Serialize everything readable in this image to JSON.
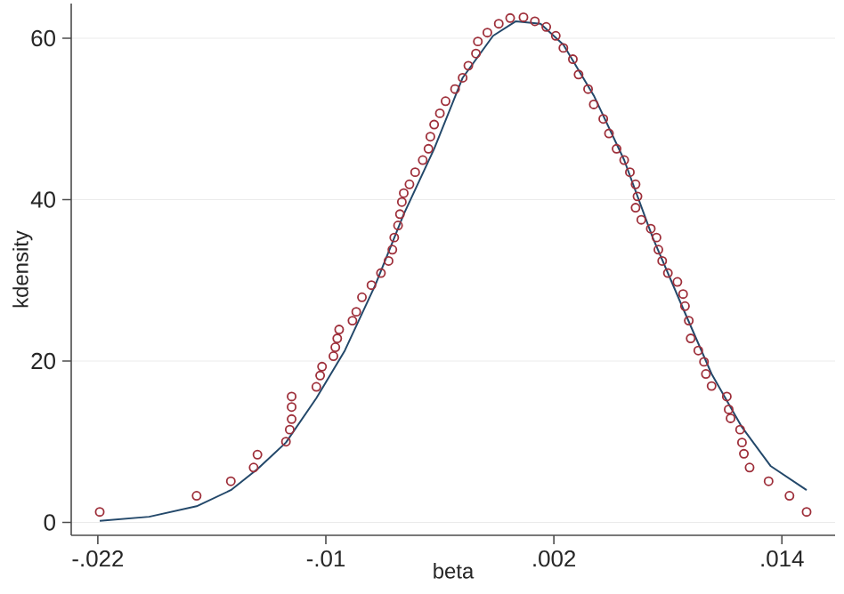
{
  "chart_data": {
    "type": "scatter",
    "xlabel": "beta",
    "ylabel": "kdensity",
    "xlim": [
      -0.0234,
      0.0168
    ],
    "ylim": [
      -1.6,
      64.3
    ],
    "xticks": [
      {
        "value": -0.022,
        "label": "-.022"
      },
      {
        "value": -0.01,
        "label": "-.01"
      },
      {
        "value": 0.002,
        "label": ".002"
      },
      {
        "value": 0.014,
        "label": ".014"
      }
    ],
    "yticks": [
      0,
      20,
      40,
      60
    ],
    "grid": "y",
    "series": [
      {
        "marker": "circle",
        "color": "#9e2f3a",
        "x": [
          -0.0219,
          -0.0168,
          -0.015,
          -0.0138,
          -0.0136,
          -0.0121,
          -0.0119,
          -0.0118,
          -0.0118,
          -0.0118,
          -0.0105,
          -0.0103,
          -0.0102,
          -0.0096,
          -0.0095,
          -0.0094,
          -0.0093,
          -0.0086,
          -0.0084,
          -0.0081,
          -0.0076,
          -0.0071,
          -0.0067,
          -0.0065,
          -0.0064,
          -0.0062,
          -0.0061,
          -0.006,
          -0.0059,
          -0.0056,
          -0.0053,
          -0.0049,
          -0.0046,
          -0.0045,
          -0.0043,
          -0.004,
          -0.0037,
          -0.0032,
          -0.0028,
          -0.0025,
          -0.0021,
          -0.002,
          -0.0015,
          -0.0009,
          -0.0003,
          0.0004,
          0.001,
          0.0016,
          0.0021,
          0.0025,
          0.003,
          0.0033,
          0.0038,
          0.0041,
          0.0046,
          0.0049,
          0.0053,
          0.0057,
          0.006,
          0.0063,
          0.0064,
          0.0063,
          0.0066,
          0.0071,
          0.0074,
          0.0075,
          0.0077,
          0.008,
          0.0085,
          0.0088,
          0.0089,
          0.0091,
          0.0092,
          0.0096,
          0.0099,
          0.01,
          0.0103,
          0.0111,
          0.0112,
          0.0113,
          0.0118,
          0.0119,
          0.012,
          0.0123,
          0.0133,
          0.0144,
          0.0153
        ],
        "values": [
          1.3,
          3.3,
          5.1,
          6.8,
          8.4,
          10.0,
          11.5,
          12.8,
          14.3,
          15.6,
          16.8,
          18.2,
          19.3,
          20.6,
          21.7,
          22.8,
          23.9,
          25.0,
          26.1,
          27.9,
          29.4,
          30.9,
          32.4,
          33.8,
          35.3,
          36.8,
          38.2,
          39.7,
          40.8,
          41.9,
          43.4,
          44.9,
          46.3,
          47.8,
          49.3,
          50.7,
          52.2,
          53.7,
          55.1,
          56.6,
          58.1,
          59.6,
          60.7,
          61.8,
          62.5,
          62.6,
          62.1,
          61.4,
          60.3,
          58.8,
          57.4,
          55.5,
          53.7,
          51.8,
          50.0,
          48.2,
          46.3,
          44.9,
          43.4,
          41.9,
          40.4,
          39.0,
          37.5,
          36.4,
          35.3,
          33.8,
          32.4,
          30.9,
          29.8,
          28.3,
          26.8,
          25.0,
          22.8,
          21.3,
          19.9,
          18.4,
          16.9,
          15.6,
          14.0,
          12.9,
          11.5,
          9.9,
          8.5,
          6.8,
          5.1,
          3.3,
          1.3
        ]
      },
      {
        "type": "line",
        "marker": "none",
        "color": "#23486a",
        "x": [
          -0.0219,
          -0.0193,
          -0.0168,
          -0.015,
          -0.0136,
          -0.0121,
          -0.0105,
          -0.009,
          -0.0074,
          -0.0059,
          -0.0043,
          -0.0028,
          -0.0012,
          0.0,
          0.0013,
          0.0025,
          0.0041,
          0.0057,
          0.0072,
          0.0088,
          0.0103,
          0.0119,
          0.0134,
          0.0153
        ],
        "values": [
          0.2,
          0.7,
          2.0,
          4.0,
          6.6,
          9.9,
          15.4,
          21.3,
          29.4,
          38.2,
          46.3,
          55.1,
          60.3,
          62.1,
          61.8,
          59.2,
          52.9,
          44.9,
          35.3,
          26.5,
          18.4,
          11.8,
          7.0,
          4.0
        ]
      }
    ]
  }
}
